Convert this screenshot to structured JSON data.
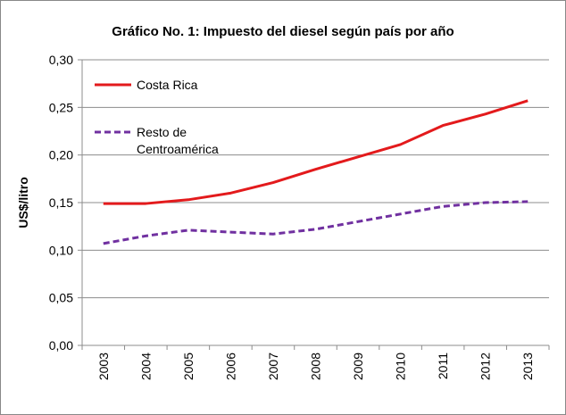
{
  "chart_data": {
    "type": "line",
    "title": "Gráfico No. 1: Impuesto del diesel según país por año",
    "xlabel": "",
    "ylabel": "US$/litro",
    "ylim": [
      0,
      0.3
    ],
    "yticks": [
      "0,00",
      "0,05",
      "0,10",
      "0,15",
      "0,20",
      "0,25",
      "0,30"
    ],
    "ytick_values": [
      0,
      0.05,
      0.1,
      0.15,
      0.2,
      0.25,
      0.3
    ],
    "grid": true,
    "legend_placement": "top-left",
    "categories": [
      "2003",
      "2004",
      "2005",
      "2006",
      "2007",
      "2008",
      "2009",
      "2010",
      "2011",
      "2012",
      "2013"
    ],
    "series": [
      {
        "name": "Costa Rica",
        "color": "#e31a1c",
        "style": "solid",
        "values": [
          0.149,
          0.149,
          0.153,
          0.16,
          0.171,
          0.185,
          0.198,
          0.211,
          0.231,
          0.243,
          0.257
        ]
      },
      {
        "name": "Resto de Centroamérica",
        "legend_lines": [
          "Resto de",
          "Centroamérica"
        ],
        "color": "#7030a0",
        "style": "dashed",
        "values": [
          0.107,
          0.115,
          0.121,
          0.119,
          0.117,
          0.122,
          0.13,
          0.138,
          0.146,
          0.15,
          0.151
        ]
      }
    ]
  }
}
